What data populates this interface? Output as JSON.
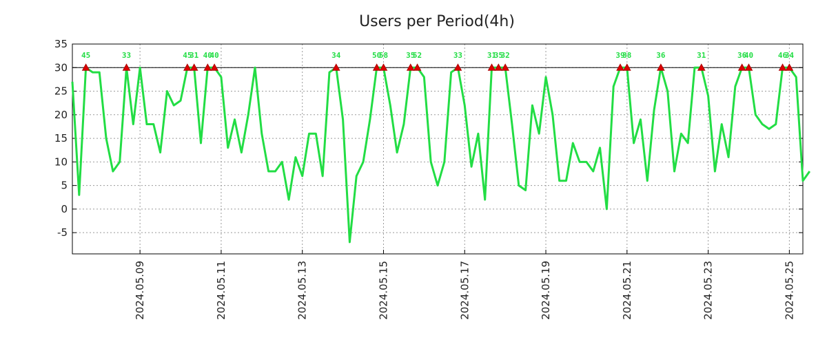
{
  "chart_data": {
    "type": "line",
    "title": "Users per Period(4h)",
    "xlabel": "",
    "ylabel": "",
    "ylim": [
      -9.5,
      35
    ],
    "yticks": [
      35,
      30,
      25,
      20,
      15,
      10,
      5,
      0,
      -5
    ],
    "y_tick_labels": [
      "35",
      "30",
      "25",
      "20",
      "15",
      "10",
      "5",
      "0",
      "-5"
    ],
    "xlim": [
      0,
      108
    ],
    "x_ticks": [
      {
        "label": "2024.05.09",
        "x": 10
      },
      {
        "label": "2024.05.11",
        "x": 22
      },
      {
        "label": "2024.05.13",
        "x": 34
      },
      {
        "label": "2024.05.15",
        "x": 46
      },
      {
        "label": "2024.05.17",
        "x": 58
      },
      {
        "label": "2024.05.19",
        "x": 70
      },
      {
        "label": "2024.05.21",
        "x": 82
      },
      {
        "label": "2024.05.23",
        "x": 94
      },
      {
        "label": "2024.05.25",
        "x": 106
      }
    ],
    "threshold": 30,
    "series": [
      {
        "name": "Users",
        "color": "#22dd44",
        "values": [
          27,
          3,
          30,
          29,
          29,
          15,
          8,
          10,
          30,
          18,
          30,
          18,
          18,
          12,
          25,
          22,
          23,
          30,
          30,
          14,
          30,
          30,
          28,
          13,
          19,
          12,
          20,
          30,
          16,
          8,
          8,
          10,
          2,
          11,
          7,
          16,
          16,
          7,
          29,
          30,
          19,
          -7,
          7,
          10,
          19,
          30,
          30,
          22,
          12,
          18,
          30,
          30,
          28,
          10,
          5,
          10,
          29,
          30,
          22,
          9,
          16,
          2,
          30,
          30,
          30,
          18,
          5,
          4,
          22,
          16,
          28,
          20,
          6,
          6,
          14,
          10,
          10,
          8,
          13,
          0,
          26,
          30,
          30,
          14,
          19,
          6,
          21,
          30,
          25,
          8,
          16,
          14,
          30,
          30,
          24,
          8,
          18,
          11,
          26,
          30,
          30,
          20,
          18,
          17,
          18,
          30,
          30,
          28,
          6,
          8
        ]
      }
    ],
    "peaks": [
      {
        "x": 2,
        "label": "45"
      },
      {
        "x": 8,
        "label": "33"
      },
      {
        "x": 17,
        "label": "45"
      },
      {
        "x": 18,
        "label": "31"
      },
      {
        "x": 20,
        "label": "40"
      },
      {
        "x": 21,
        "label": "40"
      },
      {
        "x": 39,
        "label": "34"
      },
      {
        "x": 45,
        "label": "50"
      },
      {
        "x": 46,
        "label": "58"
      },
      {
        "x": 50,
        "label": "35"
      },
      {
        "x": 51,
        "label": "52"
      },
      {
        "x": 57,
        "label": "33"
      },
      {
        "x": 62,
        "label": "31"
      },
      {
        "x": 63,
        "label": "35"
      },
      {
        "x": 64,
        "label": "32"
      },
      {
        "x": 81,
        "label": "39"
      },
      {
        "x": 82,
        "label": "38"
      },
      {
        "x": 87,
        "label": "36"
      },
      {
        "x": 93,
        "label": "31"
      },
      {
        "x": 99,
        "label": "36"
      },
      {
        "x": 100,
        "label": "40"
      },
      {
        "x": 105,
        "label": "46"
      },
      {
        "x": 106,
        "label": "34"
      }
    ]
  }
}
